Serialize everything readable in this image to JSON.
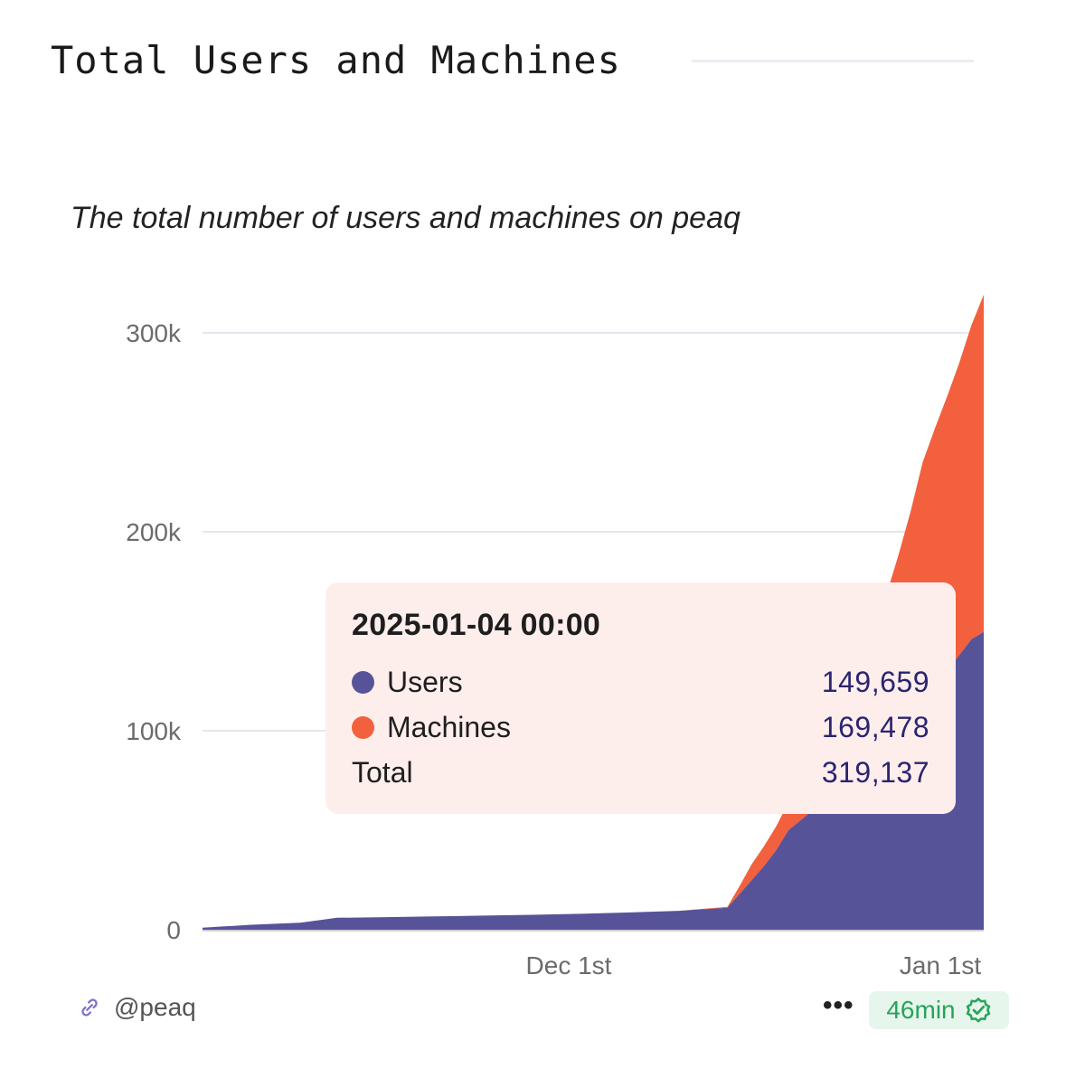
{
  "header": {
    "title": "Total Users and Machines"
  },
  "chart_data": {
    "type": "area",
    "stacked": true,
    "subtitle": "The total number of users and machines on peaq",
    "xlabel": "",
    "ylabel": "",
    "ylim": [
      0,
      320000
    ],
    "yticks": [
      0,
      100000,
      200000,
      300000
    ],
    "ytick_labels": [
      "0",
      "100k",
      "200k",
      "300k"
    ],
    "xtick_dates": [
      "2024-12-01",
      "2025-01-01"
    ],
    "xtick_labels": [
      "Dec 1st",
      "Jan 1st"
    ],
    "grid": true,
    "x": [
      "2024-11-01",
      "2024-11-05",
      "2024-11-09",
      "2024-11-12",
      "2024-11-16",
      "2024-11-20",
      "2024-11-24",
      "2024-11-28",
      "2024-12-02",
      "2024-12-06",
      "2024-12-10",
      "2024-12-14",
      "2024-12-15",
      "2024-12-16",
      "2024-12-17",
      "2024-12-18",
      "2024-12-19",
      "2024-12-20",
      "2024-12-21",
      "2024-12-22",
      "2024-12-23",
      "2024-12-24",
      "2024-12-25",
      "2024-12-26",
      "2024-12-27",
      "2024-12-28",
      "2024-12-29",
      "2024-12-30",
      "2024-12-31",
      "2025-01-01",
      "2025-01-02",
      "2025-01-03",
      "2025-01-04"
    ],
    "series": [
      {
        "name": "Users",
        "color": "#575399",
        "values": [
          1000,
          2500,
          3500,
          6000,
          6300,
          6700,
          7100,
          7500,
          8000,
          8700,
          9500,
          11000,
          18000,
          25000,
          32000,
          40000,
          50000,
          55000,
          60000,
          65000,
          70000,
          75000,
          80000,
          85000,
          90000,
          95000,
          100000,
          110000,
          120000,
          130000,
          138000,
          146000,
          149659
        ]
      },
      {
        "name": "Machines",
        "color": "#f2603e",
        "values": [
          0,
          0,
          0,
          0,
          0,
          0,
          0,
          0,
          0,
          0,
          0,
          500,
          4000,
          8000,
          10000,
          12000,
          14000,
          17000,
          22000,
          28000,
          35000,
          42000,
          52000,
          65000,
          78000,
          93000,
          110000,
          125000,
          132000,
          138000,
          147000,
          158000,
          169478
        ]
      }
    ]
  },
  "tooltip": {
    "date": "2025-01-04 00:00",
    "rows": [
      {
        "label": "Users",
        "value": "149,659",
        "color": "#575399"
      },
      {
        "label": "Machines",
        "value": "169,478",
        "color": "#f2603e"
      },
      {
        "label": "Total",
        "value": "319,137"
      }
    ]
  },
  "footer": {
    "handle": "@peaq",
    "link_icon": "link-icon",
    "more_icon": "more-horizontal-icon",
    "freshness": "46min",
    "verified_icon": "verified-check-icon"
  }
}
